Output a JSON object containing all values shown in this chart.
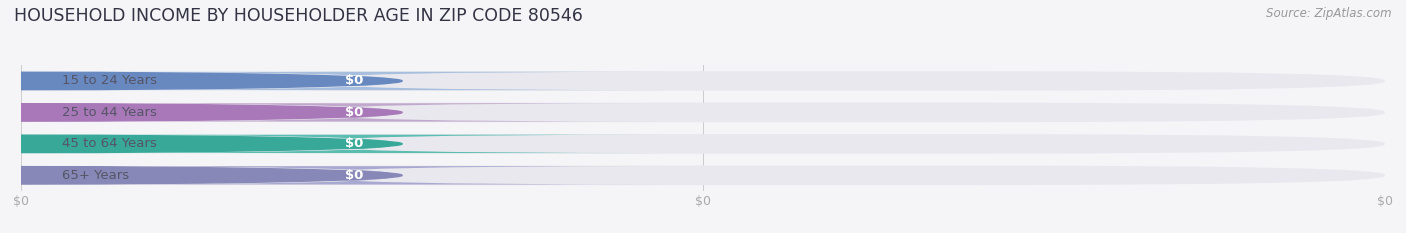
{
  "title": "HOUSEHOLD INCOME BY HOUSEHOLDER AGE IN ZIP CODE 80546",
  "source": "Source: ZipAtlas.com",
  "categories": [
    "15 to 24 Years",
    "25 to 44 Years",
    "45 to 64 Years",
    "65+ Years"
  ],
  "values": [
    0,
    0,
    0,
    0
  ],
  "bar_colors": [
    "#a8bedd",
    "#c0a8cc",
    "#5bbcb0",
    "#a8a8d0"
  ],
  "accent_colors": [
    "#6888c0",
    "#a878b8",
    "#38a898",
    "#8888b8"
  ],
  "bar_bg_color": "#e8e8ee",
  "white_pill_color": "#ffffff",
  "label_text_color": "#ffffff",
  "category_text_color": "#555566",
  "bg_color": "#f5f5f8",
  "title_color": "#333344",
  "source_color": "#999999",
  "tick_label_color": "#aaaaaa",
  "gridline_color": "#cccccc",
  "bar_height": 0.62,
  "title_fontsize": 12.5,
  "source_fontsize": 8.5,
  "category_fontsize": 9.5,
  "value_fontsize": 9.5,
  "tick_fontsize": 9
}
